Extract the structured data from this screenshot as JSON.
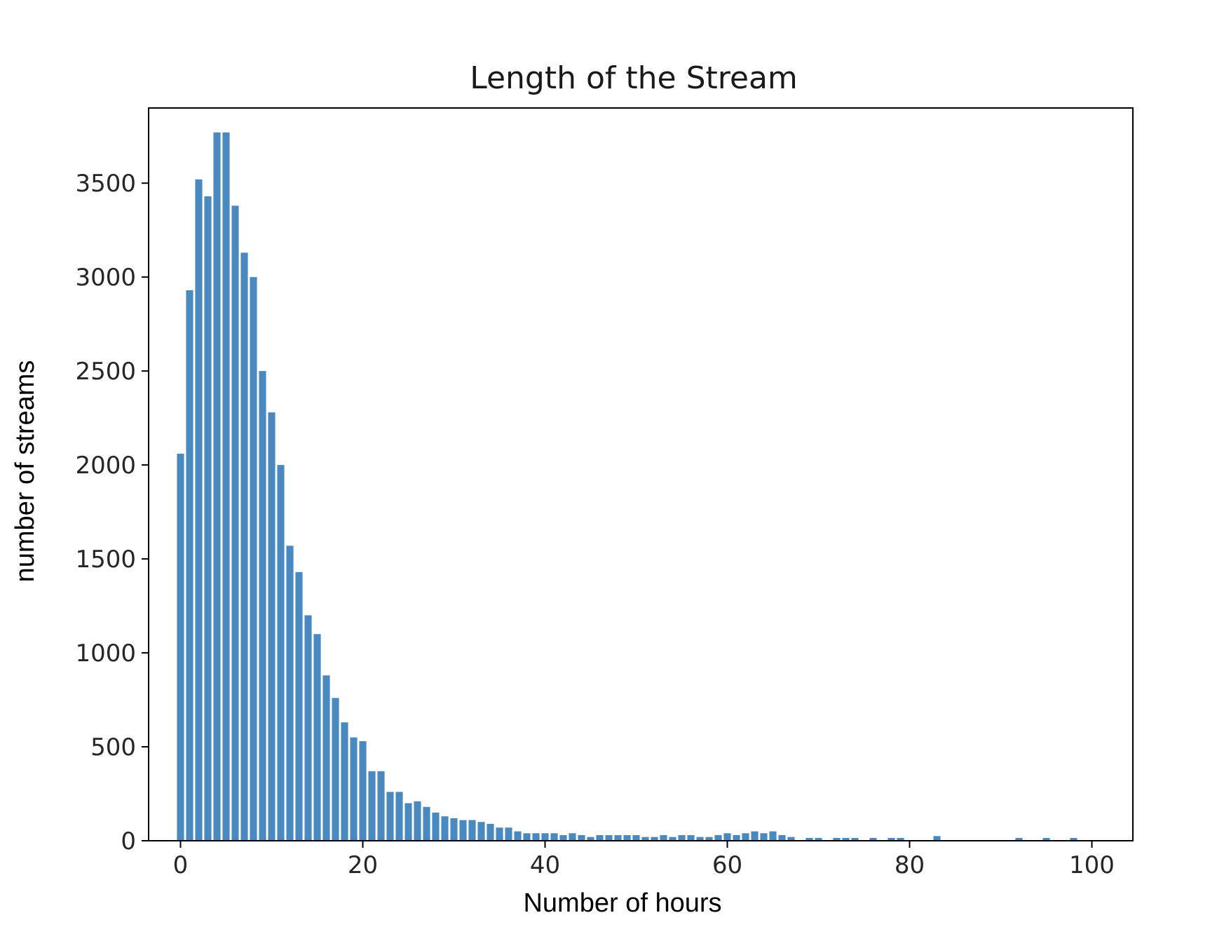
{
  "chart_data": {
    "type": "bar",
    "title": "Length of the Stream",
    "xlabel": "Number of hours",
    "ylabel": "number of streams",
    "xlim": [
      -3.5,
      104.5
    ],
    "ylim": [
      0,
      3900
    ],
    "xticks": [
      0,
      20,
      40,
      60,
      80,
      100
    ],
    "yticks": [
      0,
      500,
      1000,
      1500,
      2000,
      2500,
      3000,
      3500
    ],
    "grid": false,
    "bar_color": "#4a89bf",
    "x": [
      0,
      1,
      2,
      3,
      4,
      5,
      6,
      7,
      8,
      9,
      10,
      11,
      12,
      13,
      14,
      15,
      16,
      17,
      18,
      19,
      20,
      21,
      22,
      23,
      24,
      25,
      26,
      27,
      28,
      29,
      30,
      31,
      32,
      33,
      34,
      35,
      36,
      37,
      38,
      39,
      40,
      41,
      42,
      43,
      44,
      45,
      46,
      47,
      48,
      49,
      50,
      51,
      52,
      53,
      54,
      55,
      56,
      57,
      58,
      59,
      60,
      61,
      62,
      63,
      64,
      65,
      66,
      67,
      69,
      70,
      72,
      73,
      74,
      76,
      78,
      79,
      83,
      92,
      95,
      98
    ],
    "values": [
      2060,
      2930,
      3520,
      3430,
      3770,
      3770,
      3380,
      3130,
      3000,
      2500,
      2280,
      2000,
      1570,
      1430,
      1200,
      1100,
      880,
      760,
      630,
      550,
      530,
      370,
      370,
      260,
      260,
      200,
      210,
      180,
      150,
      130,
      120,
      110,
      110,
      100,
      90,
      70,
      70,
      50,
      40,
      40,
      40,
      40,
      30,
      40,
      30,
      20,
      30,
      30,
      30,
      30,
      30,
      20,
      20,
      30,
      20,
      30,
      30,
      20,
      20,
      30,
      40,
      30,
      40,
      50,
      40,
      50,
      30,
      20,
      15,
      15,
      15,
      15,
      15,
      15,
      15,
      15,
      25,
      15,
      15,
      15
    ]
  }
}
